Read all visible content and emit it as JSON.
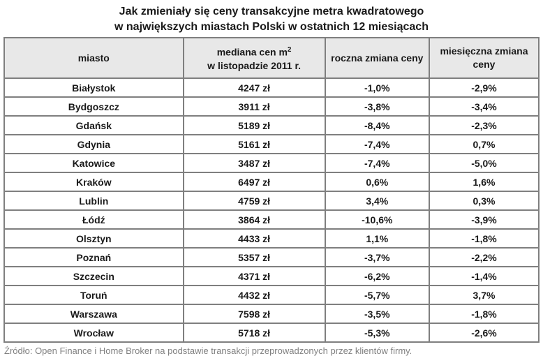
{
  "title": {
    "line1": "Jak zmieniały się ceny transakcyjne metra kwadratowego",
    "line2": "w największych miastach Polski w ostatnich 12 miesiącach"
  },
  "table": {
    "headers": {
      "city": "miasto",
      "median_line1": "mediana cen m",
      "median_sup": "2",
      "median_line2": "w listopadzie 2011 r.",
      "yearly": "roczna zmiana ceny",
      "monthly": "miesięczna zmiana ceny"
    },
    "rows": [
      {
        "city": "Białystok",
        "median": "4247 zł",
        "yearly": "-1,0%",
        "monthly": "-2,9%"
      },
      {
        "city": "Bydgoszcz",
        "median": "3911 zł",
        "yearly": "-3,8%",
        "monthly": "-3,4%"
      },
      {
        "city": "Gdańsk",
        "median": "5189 zł",
        "yearly": "-8,4%",
        "monthly": "-2,3%"
      },
      {
        "city": "Gdynia",
        "median": "5161 zł",
        "yearly": "-7,4%",
        "monthly": "0,7%"
      },
      {
        "city": "Katowice",
        "median": "3487 zł",
        "yearly": "-7,4%",
        "monthly": "-5,0%"
      },
      {
        "city": "Kraków",
        "median": "6497 zł",
        "yearly": "0,6%",
        "monthly": "1,6%"
      },
      {
        "city": "Lublin",
        "median": "4759 zł",
        "yearly": "3,4%",
        "monthly": "0,3%"
      },
      {
        "city": "Łódź",
        "median": "3864 zł",
        "yearly": "-10,6%",
        "monthly": "-3,9%"
      },
      {
        "city": "Olsztyn",
        "median": "4433 zł",
        "yearly": "1,1%",
        "monthly": "-1,8%"
      },
      {
        "city": "Poznań",
        "median": "5357 zł",
        "yearly": "-3,7%",
        "monthly": "-2,2%"
      },
      {
        "city": "Szczecin",
        "median": "4371 zł",
        "yearly": "-6,2%",
        "monthly": "-1,4%"
      },
      {
        "city": "Toruń",
        "median": "4432 zł",
        "yearly": "-5,7%",
        "monthly": "3,7%"
      },
      {
        "city": "Warszawa",
        "median": "7598 zł",
        "yearly": "-3,5%",
        "monthly": "-1,8%"
      },
      {
        "city": "Wrocław",
        "median": "5718 zł",
        "yearly": "-5,3%",
        "monthly": "-2,6%"
      }
    ]
  },
  "footer": "Źródło: Open Finance i Home Broker na podstawie transakcji przeprowadzonych przez klientów firmy.",
  "colors": {
    "border": "#7f7f7f",
    "header_bg": "#e8e8e8",
    "text": "#1a1a1a",
    "footer_text": "#808080"
  },
  "chart_data": {
    "type": "table",
    "title": "Jak zmieniały się ceny transakcyjne metra kwadratowego w największych miastach Polski w ostatnich 12 miesiącach",
    "columns": [
      "miasto",
      "mediana cen m2 w listopadzie 2011 r.",
      "roczna zmiana ceny",
      "miesięczna zmiana ceny"
    ],
    "units": {
      "median": "zł",
      "yearly_change": "%",
      "monthly_change": "%"
    },
    "rows": [
      [
        "Białystok",
        4247,
        -1.0,
        -2.9
      ],
      [
        "Bydgoszcz",
        3911,
        -3.8,
        -3.4
      ],
      [
        "Gdańsk",
        5189,
        -8.4,
        -2.3
      ],
      [
        "Gdynia",
        5161,
        -7.4,
        0.7
      ],
      [
        "Katowice",
        3487,
        -7.4,
        -5.0
      ],
      [
        "Kraków",
        6497,
        0.6,
        1.6
      ],
      [
        "Lublin",
        4759,
        3.4,
        0.3
      ],
      [
        "Łódź",
        3864,
        -10.6,
        -3.9
      ],
      [
        "Olsztyn",
        4433,
        1.1,
        -1.8
      ],
      [
        "Poznań",
        5357,
        -3.7,
        -2.2
      ],
      [
        "Szczecin",
        4371,
        -6.2,
        -1.4
      ],
      [
        "Toruń",
        4432,
        -5.7,
        3.7
      ],
      [
        "Warszawa",
        7598,
        -3.5,
        -1.8
      ],
      [
        "Wrocław",
        5718,
        -5.3,
        -2.6
      ]
    ],
    "source": "Źródło: Open Finance i Home Broker na podstawie transakcji przeprowadzonych przez klientów firmy."
  }
}
